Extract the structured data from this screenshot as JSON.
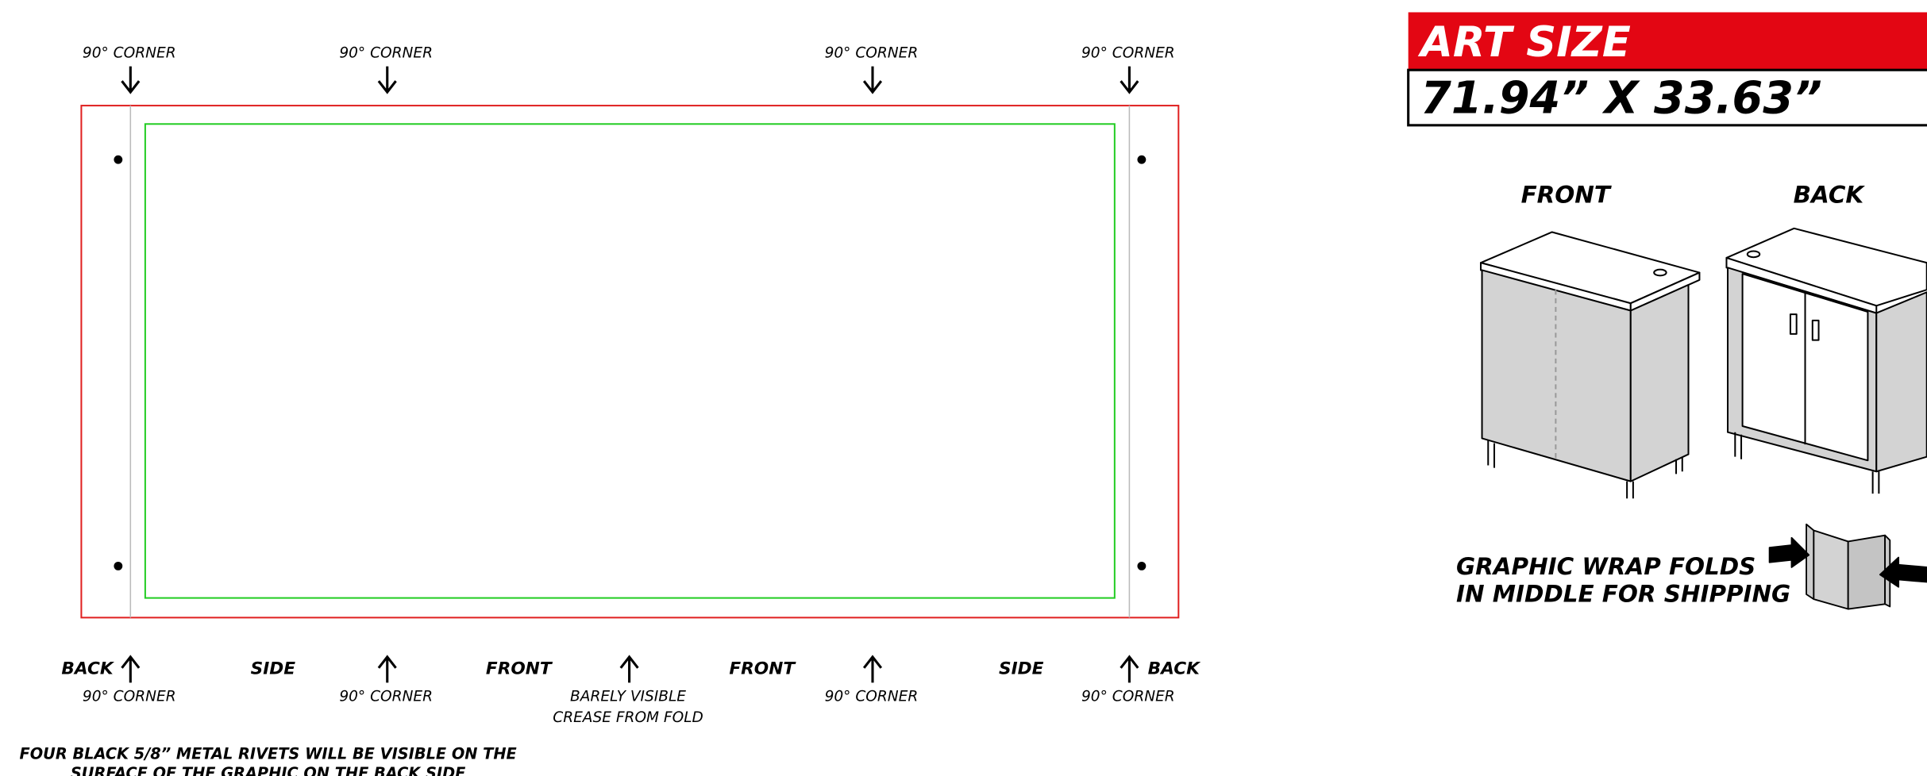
{
  "top_labels": [
    "90° CORNER",
    "90° CORNER",
    "90° CORNER",
    "90° CORNER"
  ],
  "bottom_sides": [
    "BACK",
    "SIDE",
    "FRONT",
    "FRONT",
    "SIDE",
    "BACK"
  ],
  "bottom_corners": [
    "90° CORNER",
    "90° CORNER",
    "90° CORNER",
    "90° CORNER"
  ],
  "crease_note": [
    "BARELY VISIBLE",
    "CREASE FROM FOLD"
  ],
  "rivet_note": [
    "FOUR BLACK 5/8” METAL RIVETS WILL BE VISIBLE ON THE",
    "SURFACE OF THE GRAPHIC ON THE BACK SIDE"
  ],
  "art_size": {
    "title": "ART SIZE",
    "value": "71.94” X 33.63”"
  },
  "views": [
    "FRONT",
    "BACK"
  ],
  "fold_note": [
    "GRAPHIC WRAP FOLDS",
    "IN MIDDLE FOR SHIPPING"
  ]
}
